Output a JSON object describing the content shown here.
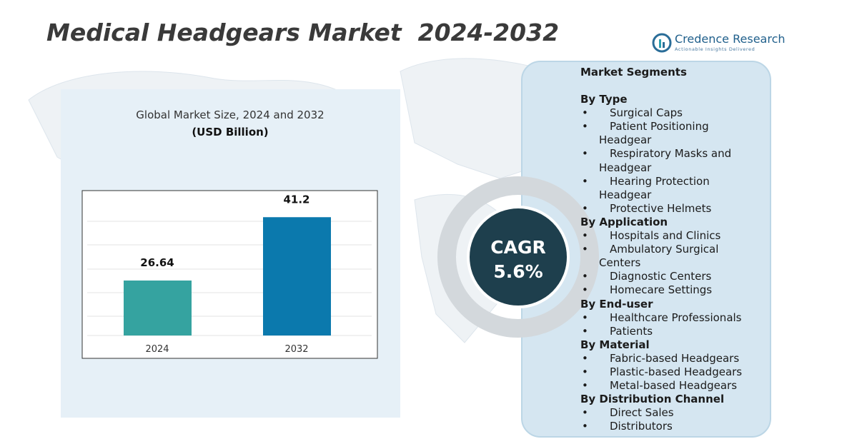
{
  "header": {
    "title": "Medical Headgears Market  2024-2032",
    "brand": "Credence Research",
    "tagline": "Actionable Insights Delivered"
  },
  "chart_data": {
    "type": "bar",
    "title": "Global Market Size, 2024 and 2032",
    "subtitle": "(USD Billion)",
    "categories": [
      "2024",
      "2032"
    ],
    "values": [
      26.64,
      41.2
    ],
    "colors": [
      "#35a3a0",
      "#0b79ad"
    ],
    "ylim": [
      14,
      46
    ]
  },
  "cagr": {
    "label": "CAGR",
    "value": "5.6%"
  },
  "segments": {
    "heading": "Market Segments",
    "groups": [
      {
        "title": "By Type",
        "items": [
          "Surgical Caps",
          "Patient Positioning Headgear",
          "Respiratory Masks and Headgear",
          "Hearing Protection Headgear",
          "Protective Helmets"
        ]
      },
      {
        "title": "By Application",
        "items": [
          "Hospitals and Clinics",
          "Ambulatory Surgical Centers",
          "Diagnostic Centers",
          "Homecare Settings"
        ]
      },
      {
        "title": "By End-user",
        "items": [
          "Healthcare Professionals",
          "Patients"
        ]
      },
      {
        "title": "By Material",
        "items": [
          "Fabric-based Headgears",
          "Plastic-based Headgears",
          "Metal-based Headgears"
        ]
      },
      {
        "title": "By Distribution Channel",
        "items": [
          "Direct Sales",
          "Distributors"
        ]
      }
    ]
  }
}
